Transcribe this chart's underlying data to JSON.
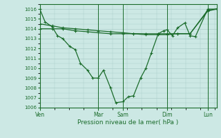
{
  "title": "",
  "xlabel": "Pression niveau de la mer( hPa )",
  "ylim": [
    1006,
    1016.5
  ],
  "yticks": [
    1006,
    1007,
    1008,
    1009,
    1010,
    1011,
    1012,
    1013,
    1014,
    1015,
    1016
  ],
  "bg_color": "#cce8e4",
  "grid_color": "#aaccc8",
  "line_color": "#1a6b2a",
  "day_labels": [
    "Ven",
    "Mar",
    "Sam",
    "Dim",
    "Lun"
  ],
  "day_positions": [
    0.0,
    0.33,
    0.47,
    0.72,
    0.95
  ],
  "series1_x": [
    0.0,
    0.03,
    0.07,
    0.1,
    0.13,
    0.17,
    0.2,
    0.23,
    0.27,
    0.3,
    0.33,
    0.36,
    0.4,
    0.43,
    0.47,
    0.5,
    0.53,
    0.57,
    0.6,
    0.63,
    0.67,
    0.7,
    0.72,
    0.75,
    0.78,
    0.82,
    0.85,
    0.88,
    0.95,
    1.0
  ],
  "series1_y": [
    1016.0,
    1014.7,
    1014.2,
    1013.3,
    1013.0,
    1012.2,
    1011.9,
    1010.5,
    1009.8,
    1009.0,
    1009.0,
    1009.8,
    1008.0,
    1006.5,
    1006.6,
    1007.1,
    1007.2,
    1009.0,
    1010.0,
    1011.5,
    1013.5,
    1013.8,
    1013.9,
    1013.3,
    1014.1,
    1014.6,
    1013.3,
    1013.2,
    1016.0,
    1016.0
  ],
  "series2_x": [
    0.0,
    0.07,
    0.13,
    0.2,
    0.27,
    0.33,
    0.4,
    0.47,
    0.53,
    0.6,
    0.67,
    0.72,
    0.78,
    0.85,
    0.95,
    1.0
  ],
  "series2_y": [
    1014.0,
    1014.0,
    1014.0,
    1013.8,
    1013.7,
    1013.6,
    1013.5,
    1013.5,
    1013.5,
    1013.5,
    1013.5,
    1013.5,
    1013.5,
    1013.5,
    1015.8,
    1016.0
  ],
  "series3_x": [
    0.0,
    0.07,
    0.13,
    0.2,
    0.27,
    0.33,
    0.4,
    0.47,
    0.53,
    0.6,
    0.67,
    0.72,
    0.78,
    0.85,
    0.95,
    1.0
  ],
  "series3_y": [
    1014.5,
    1014.3,
    1014.1,
    1014.0,
    1013.9,
    1013.8,
    1013.7,
    1013.6,
    1013.5,
    1013.4,
    1013.4,
    1013.4,
    1013.5,
    1013.5,
    1015.9,
    1016.0
  ]
}
